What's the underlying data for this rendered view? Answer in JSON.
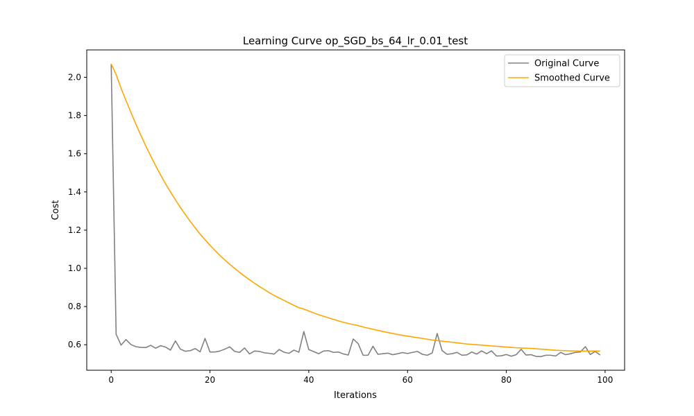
{
  "chart_data": {
    "type": "line",
    "title": "Learning Curve op_SGD_bs_64_lr_0.01_test",
    "xlabel": "Iterations",
    "ylabel": "Cost",
    "xlim": [
      -4.95,
      103.95
    ],
    "ylim": [
      0.4665,
      2.1435
    ],
    "xticks": [
      0,
      20,
      40,
      60,
      80,
      100
    ],
    "yticks": [
      0.6,
      0.8,
      1.0,
      1.2,
      1.4,
      1.6,
      1.8,
      2.0
    ],
    "grid": false,
    "legend_position": "top-right",
    "series": [
      {
        "name": "Original Curve",
        "color": "#808080",
        "values": [
          2.07,
          0.655,
          0.598,
          0.627,
          0.601,
          0.59,
          0.586,
          0.585,
          0.597,
          0.582,
          0.595,
          0.588,
          0.572,
          0.62,
          0.577,
          0.566,
          0.569,
          0.58,
          0.563,
          0.633,
          0.562,
          0.562,
          0.567,
          0.577,
          0.589,
          0.565,
          0.56,
          0.583,
          0.552,
          0.567,
          0.565,
          0.558,
          0.555,
          0.551,
          0.575,
          0.561,
          0.555,
          0.572,
          0.561,
          0.669,
          0.575,
          0.564,
          0.553,
          0.567,
          0.569,
          0.56,
          0.562,
          0.552,
          0.546,
          0.63,
          0.606,
          0.545,
          0.545,
          0.592,
          0.55,
          0.553,
          0.556,
          0.548,
          0.553,
          0.559,
          0.554,
          0.56,
          0.565,
          0.55,
          0.545,
          0.557,
          0.659,
          0.569,
          0.55,
          0.553,
          0.56,
          0.545,
          0.547,
          0.562,
          0.551,
          0.568,
          0.553,
          0.568,
          0.541,
          0.542,
          0.549,
          0.54,
          0.548,
          0.576,
          0.546,
          0.548,
          0.539,
          0.538,
          0.545,
          0.545,
          0.541,
          0.56,
          0.548,
          0.553,
          0.56,
          0.562,
          0.59,
          0.549,
          0.565,
          0.546
        ]
      },
      {
        "name": "Smoothed Curve",
        "color": "#ffa500",
        "values": [
          2.07,
          2.014,
          1.943,
          1.878,
          1.816,
          1.755,
          1.697,
          1.641,
          1.588,
          1.537,
          1.489,
          1.443,
          1.4,
          1.359,
          1.319,
          1.282,
          1.246,
          1.212,
          1.179,
          1.15,
          1.121,
          1.094,
          1.068,
          1.044,
          1.021,
          1.0,
          0.979,
          0.959,
          0.94,
          0.922,
          0.905,
          0.889,
          0.873,
          0.858,
          0.845,
          0.832,
          0.819,
          0.806,
          0.794,
          0.787,
          0.777,
          0.767,
          0.757,
          0.749,
          0.741,
          0.733,
          0.725,
          0.718,
          0.711,
          0.706,
          0.7,
          0.693,
          0.687,
          0.681,
          0.675,
          0.669,
          0.664,
          0.659,
          0.654,
          0.649,
          0.645,
          0.641,
          0.637,
          0.633,
          0.629,
          0.625,
          0.622,
          0.619,
          0.616,
          0.613,
          0.61,
          0.607,
          0.604,
          0.602,
          0.6,
          0.598,
          0.596,
          0.594,
          0.592,
          0.59,
          0.588,
          0.586,
          0.584,
          0.583,
          0.582,
          0.581,
          0.579,
          0.577,
          0.575,
          0.573,
          0.571,
          0.57,
          0.569,
          0.568,
          0.567,
          0.567,
          0.567,
          0.567,
          0.567,
          0.567
        ]
      }
    ]
  }
}
